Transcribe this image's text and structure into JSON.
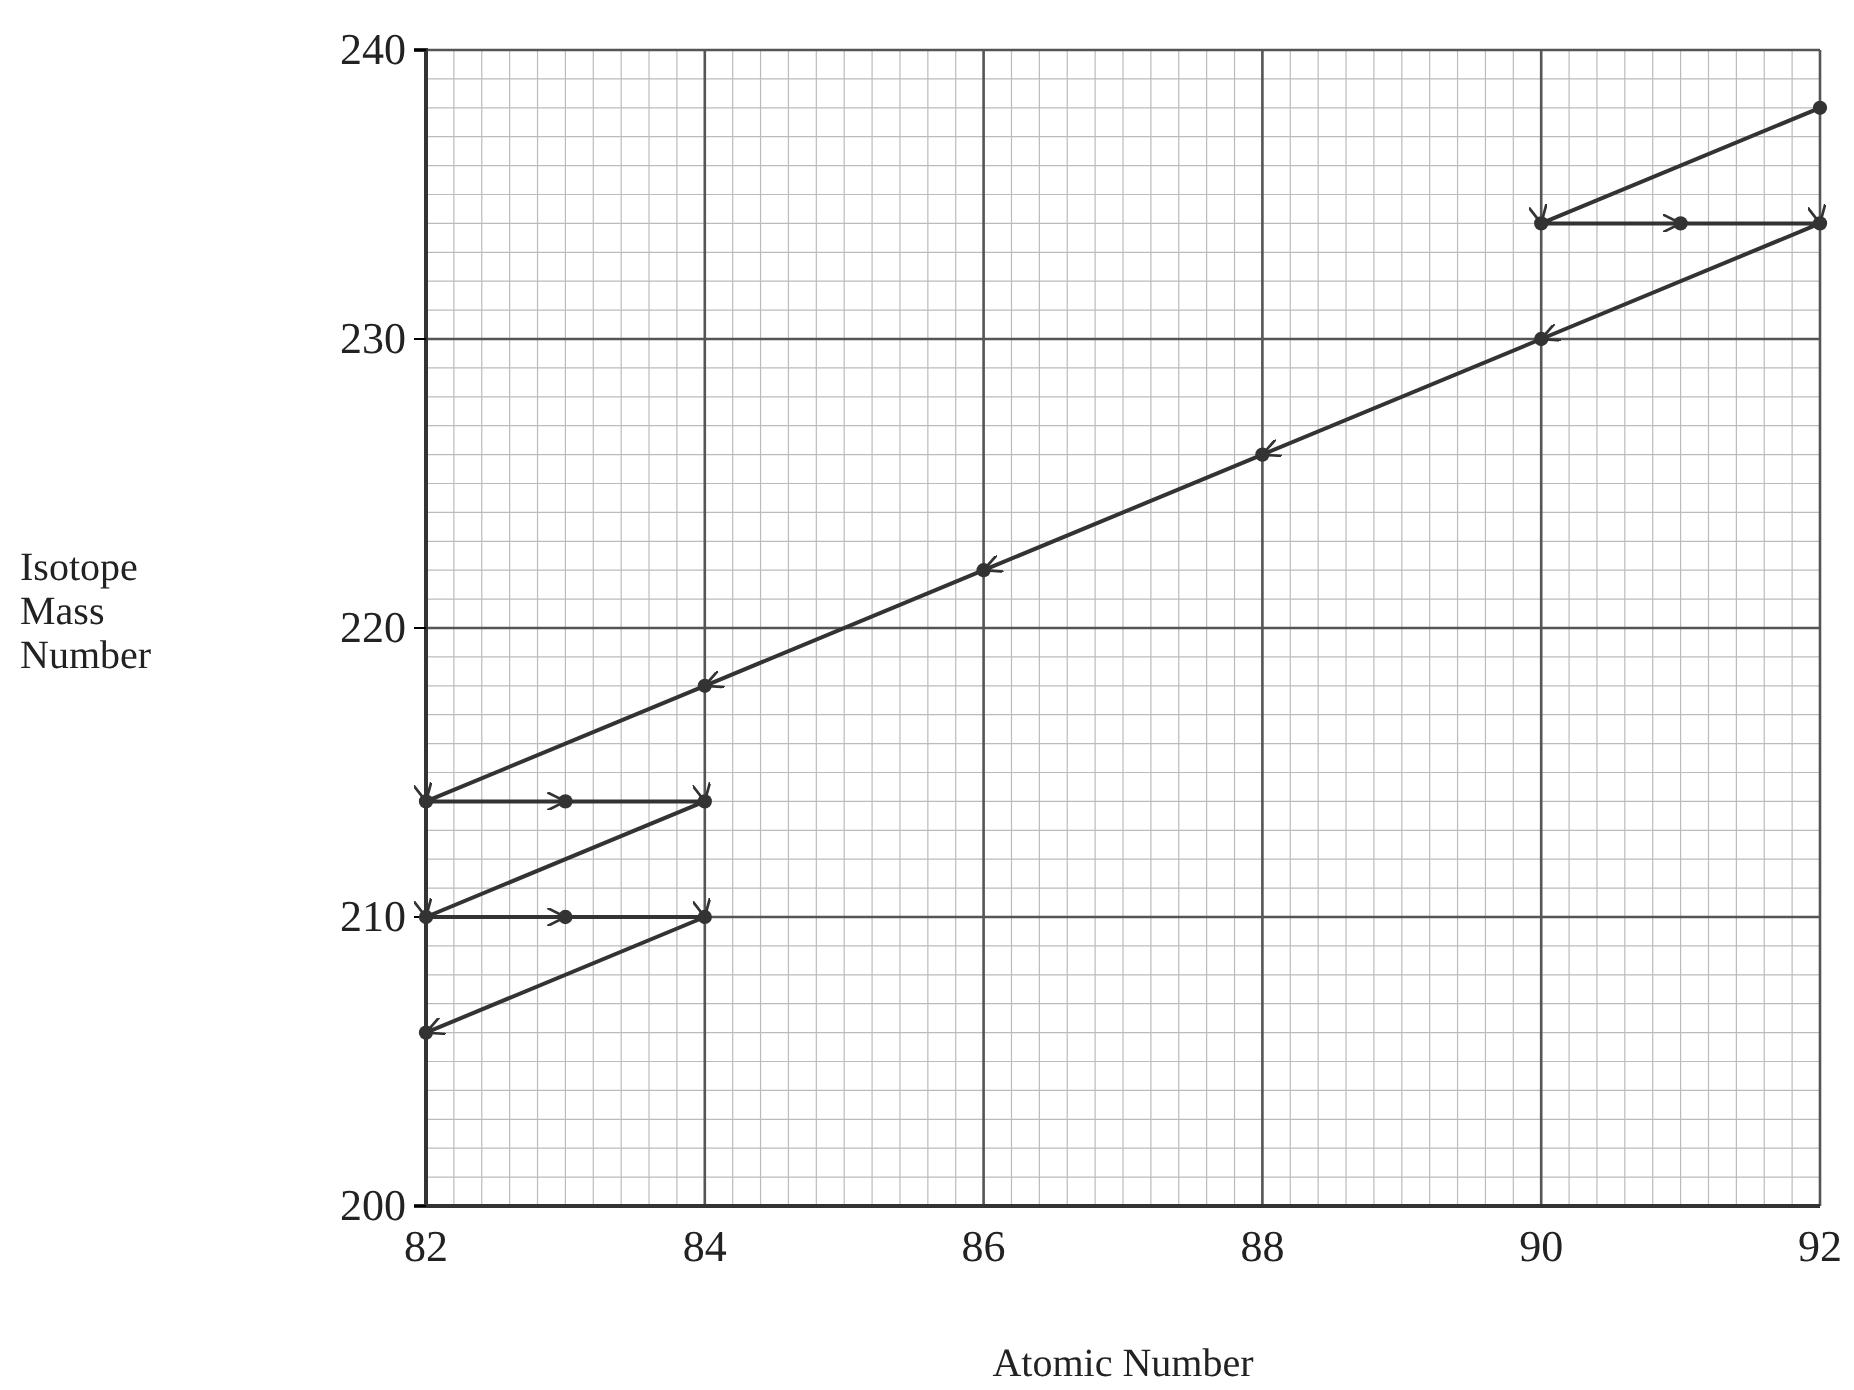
{
  "chart_data": {
    "type": "line",
    "xlabel": "Atomic Number",
    "ylabel": "Isotope Mass Number",
    "x": [
      92,
      90,
      91,
      92,
      90,
      88,
      86,
      84,
      82,
      83,
      84,
      82,
      83,
      84,
      82
    ],
    "series": [
      {
        "color": "#333333",
        "values": [
          238,
          234,
          234,
          234,
          230,
          226,
          222,
          218,
          214,
          214,
          214,
          210,
          210,
          210,
          206
        ]
      }
    ],
    "xlim": [
      82,
      92
    ],
    "xticks": [
      82,
      84,
      86,
      88,
      90,
      92
    ],
    "ylim": [
      200,
      240
    ],
    "yticks": [
      200,
      210,
      220,
      230,
      240
    ],
    "grid": true,
    "marker": "circle",
    "line_style": "solid"
  }
}
